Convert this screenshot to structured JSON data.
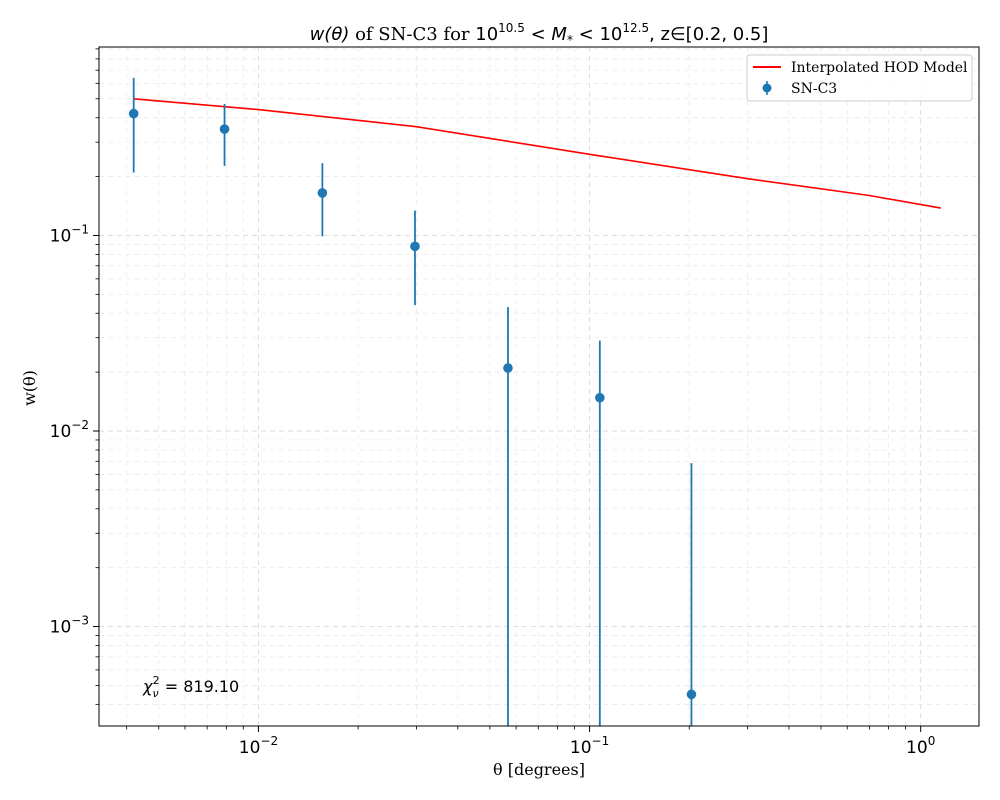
{
  "chart_data": {
    "type": "scatter",
    "title": {
      "prefix": "w(θ)",
      "middle": " of SN-C3 for ",
      "mass_low_base": "10",
      "mass_low_exp": "10.5",
      "mass_mid": " < M",
      "mass_sub": "*",
      "mass_lt": " < ",
      "mass_high_base": "10",
      "mass_high_exp": "12.5",
      "z_part": ",  z∈[0.2, 0.5]"
    },
    "xlabel": "θ [degrees]",
    "ylabel": "w(θ)",
    "xscale": "log",
    "yscale": "log",
    "xlim": [
      0.0033,
      1.5
    ],
    "ylim": [
      0.00031,
      0.92
    ],
    "grid": true,
    "x_ticks": [
      {
        "base": "10",
        "exp": "−2",
        "value": 0.01
      },
      {
        "base": "10",
        "exp": "−1",
        "value": 0.1
      },
      {
        "base": "10",
        "exp": "0",
        "value": 1
      }
    ],
    "y_ticks": [
      {
        "base": "10",
        "exp": "−3",
        "value": 0.001
      },
      {
        "base": "10",
        "exp": "−2",
        "value": 0.01
      },
      {
        "base": "10",
        "exp": "−1",
        "value": 0.1
      }
    ],
    "legend": {
      "position": "top-right",
      "model_label": "Interpolated HOD Model",
      "data_label": "SN-C3"
    },
    "series": [
      {
        "name": "Interpolated HOD Model",
        "kind": "line",
        "color": "#ff0000",
        "x": [
          0.0042,
          0.01,
          0.03,
          0.1,
          0.3,
          0.7,
          1.15
        ],
        "y": [
          0.5,
          0.44,
          0.36,
          0.26,
          0.195,
          0.16,
          0.138
        ]
      },
      {
        "name": "SN-C3",
        "kind": "errorbar",
        "color": "#1f77b4",
        "x": [
          0.0042,
          0.0079,
          0.0156,
          0.0297,
          0.0567,
          0.1074,
          0.2031
        ],
        "y": [
          0.42,
          0.35,
          0.165,
          0.088,
          0.021,
          0.0148,
          0.00045
        ],
        "yerr_low": [
          0.21,
          0.123,
          0.066,
          0.044,
          0.021,
          0.0148,
          0.00045
        ],
        "yerr_high": [
          0.22,
          0.12,
          0.069,
          0.046,
          0.022,
          0.0142,
          0.0064
        ]
      }
    ],
    "annotation": {
      "chi_symbol": "χ",
      "chi_sub": "ν",
      "chi_sup": "2",
      "chi_value": " = 819.10"
    }
  }
}
